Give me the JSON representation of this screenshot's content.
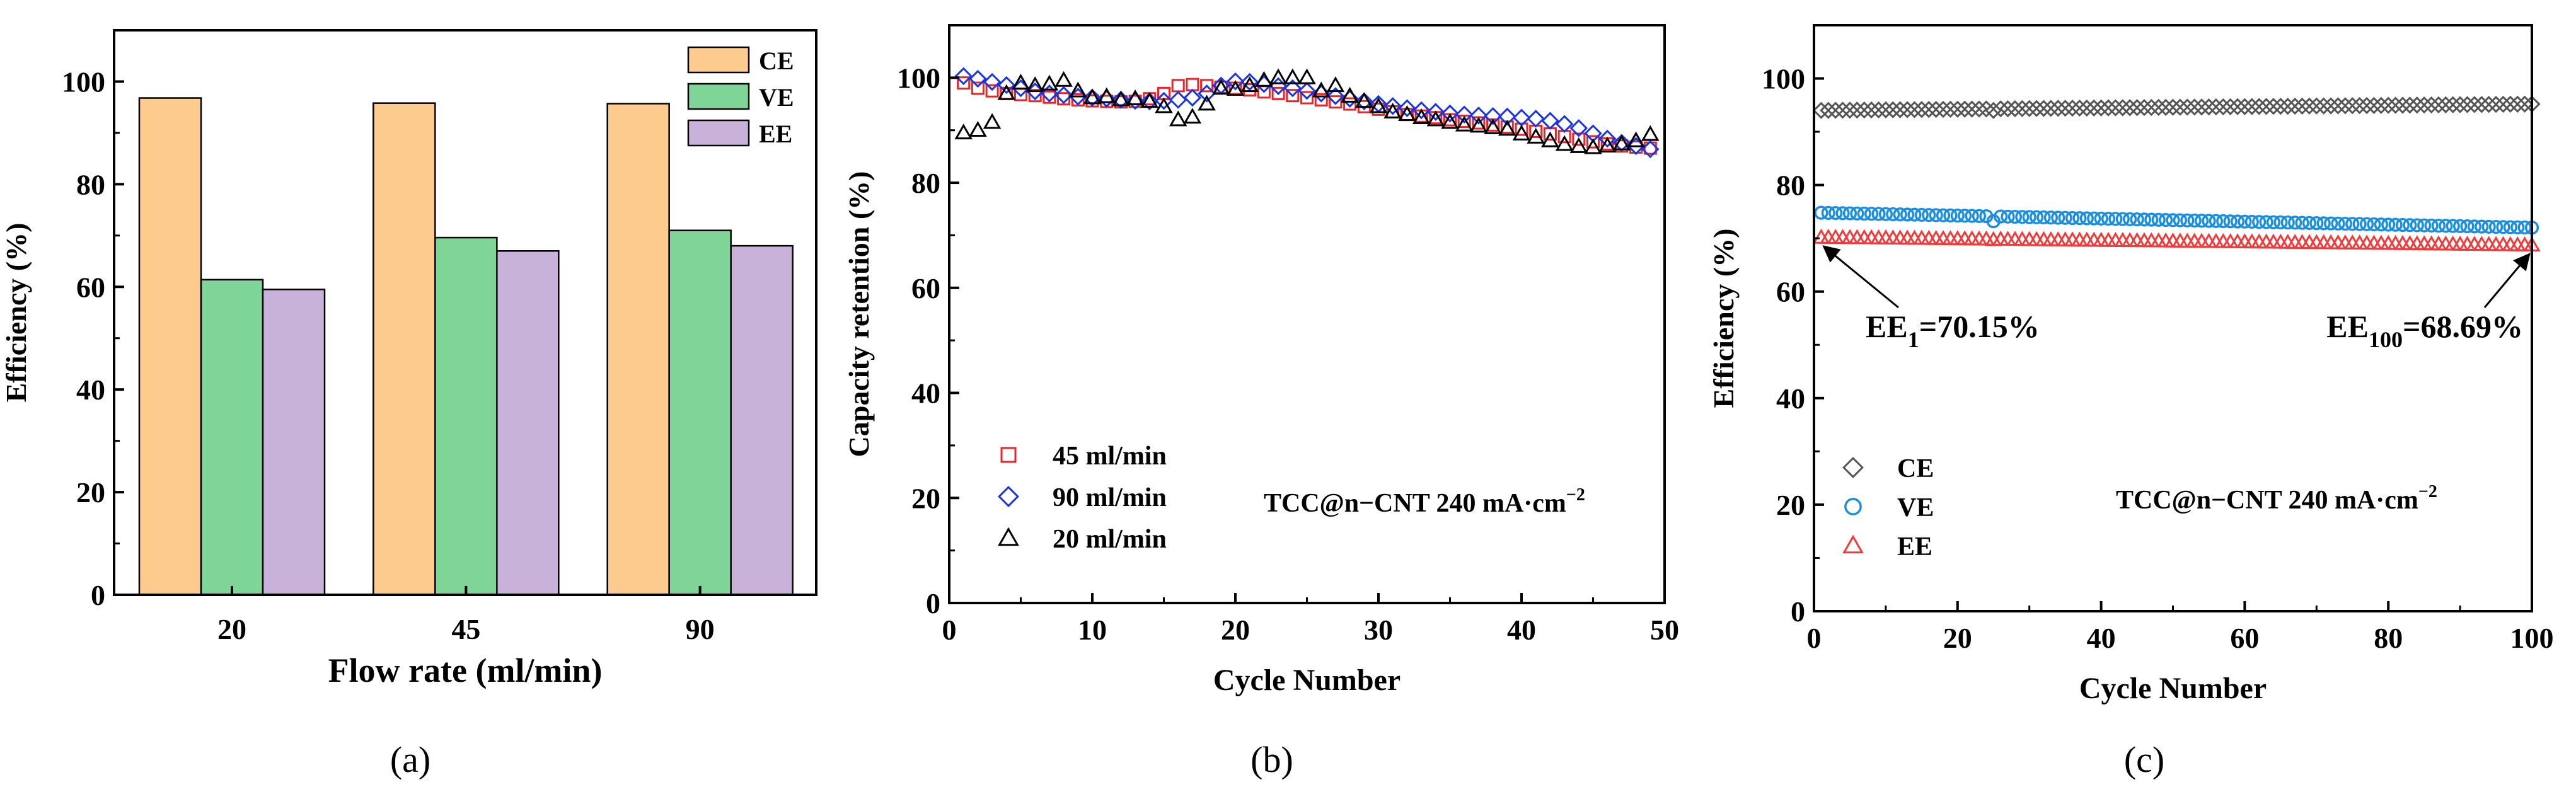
{
  "chart_data": [
    {
      "type": "bar",
      "panel_label": "(a)",
      "xlabel": "Flow rate (ml/min)",
      "ylabel": "Efficiency (%)",
      "ylim": [
        0,
        110
      ],
      "yticks": [
        0,
        20,
        40,
        60,
        80,
        100
      ],
      "categories": [
        "20",
        "45",
        "90"
      ],
      "series": [
        {
          "name": "CE",
          "color": "#FECB8F",
          "values": [
            96.8,
            95.8,
            95.7
          ]
        },
        {
          "name": "VE",
          "color": "#7ED597",
          "values": [
            61.4,
            69.6,
            71.0
          ]
        },
        {
          "name": "EE",
          "color": "#C9B2D9",
          "values": [
            59.5,
            67.0,
            68.0
          ]
        }
      ],
      "legend": "top-right"
    },
    {
      "type": "scatter",
      "panel_label": "(b)",
      "xlabel": "Cycle Number",
      "ylabel": "Capacity retention (%)",
      "xlim": [
        0,
        50
      ],
      "ylim": [
        0,
        110
      ],
      "xticks": [
        0,
        10,
        20,
        30,
        40,
        50
      ],
      "yticks": [
        0,
        20,
        40,
        60,
        80,
        100
      ],
      "annotation": "TCC@n−CNT 240 mA·cm",
      "annotation_sup": "−2",
      "legend": "bottom-left",
      "series": [
        {
          "name": "45 ml/min",
          "marker": "square",
          "color": "#E8262A",
          "x": [
            1,
            2,
            3,
            4,
            5,
            6,
            7,
            8,
            9,
            10,
            11,
            12,
            13,
            14,
            15,
            16,
            17,
            18,
            19,
            20,
            21,
            22,
            23,
            24,
            25,
            26,
            27,
            28,
            29,
            30,
            31,
            32,
            33,
            34,
            35,
            36,
            37,
            38,
            39,
            40,
            41,
            42,
            43,
            44,
            45,
            46,
            47,
            48,
            49
          ],
          "y": [
            99,
            98,
            97.5,
            97,
            96.8,
            96.6,
            96.3,
            96,
            95.8,
            95.6,
            95.5,
            95.4,
            95.5,
            96,
            97,
            98.5,
            98.7,
            98.5,
            98.2,
            98,
            97.7,
            97.3,
            97,
            96.6,
            96.2,
            95.8,
            95.4,
            95,
            94.5,
            94,
            93.5,
            93,
            92.7,
            92.4,
            92,
            91.7,
            91.4,
            91,
            90.6,
            90.2,
            89.8,
            89.3,
            88.8,
            88.3,
            87.8,
            87.4,
            87,
            86.8,
            86.6
          ]
        },
        {
          "name": "90 ml/min",
          "marker": "diamond",
          "color": "#1B35E0",
          "x": [
            1,
            2,
            3,
            4,
            5,
            6,
            7,
            8,
            9,
            10,
            11,
            12,
            13,
            14,
            15,
            16,
            17,
            18,
            19,
            20,
            21,
            22,
            23,
            24,
            25,
            26,
            27,
            28,
            29,
            30,
            31,
            32,
            33,
            34,
            35,
            36,
            37,
            38,
            39,
            40,
            41,
            42,
            43,
            44,
            45,
            46,
            47,
            48,
            49
          ],
          "y": [
            100.3,
            99.8,
            99.2,
            98.6,
            98,
            97.4,
            97,
            96.7,
            96.4,
            96.2,
            96,
            95.8,
            95.6,
            95.5,
            95.6,
            95.8,
            96.2,
            97,
            98.5,
            99.3,
            99.2,
            98.8,
            98.4,
            98,
            97.5,
            97,
            96.5,
            96,
            95.5,
            95,
            94.6,
            94.2,
            93.8,
            93.5,
            93.2,
            93,
            92.8,
            92.7,
            92.6,
            92.4,
            92.2,
            91.8,
            91.2,
            90.4,
            89.4,
            88.4,
            87.6,
            87,
            86.4
          ]
        },
        {
          "name": "20 ml/min",
          "marker": "triangle",
          "color": "#000000",
          "x": [
            1,
            2,
            3,
            4,
            5,
            6,
            7,
            8,
            9,
            10,
            11,
            12,
            13,
            14,
            15,
            16,
            17,
            18,
            19,
            20,
            21,
            22,
            23,
            24,
            25,
            26,
            27,
            28,
            29,
            30,
            31,
            32,
            33,
            34,
            35,
            36,
            37,
            38,
            39,
            40,
            41,
            42,
            43,
            44,
            45,
            46,
            47,
            48,
            49
          ],
          "y": [
            89.5,
            90,
            91.5,
            97,
            99,
            98.5,
            98.8,
            99.5,
            97.5,
            96.2,
            96.4,
            95.8,
            96,
            95.5,
            94.5,
            92,
            92.5,
            95,
            98,
            97.8,
            98.5,
            99.5,
            100,
            100,
            100,
            97.5,
            98.5,
            96.5,
            95.5,
            94.5,
            93.5,
            93,
            92.4,
            92,
            91.5,
            91,
            90.8,
            90.5,
            90.2,
            89.3,
            88.7,
            88,
            87.3,
            86.9,
            86.7,
            87,
            87.4,
            88,
            89.2
          ]
        }
      ]
    },
    {
      "type": "scatter",
      "panel_label": "(c)",
      "xlabel": "Cycle Number",
      "ylabel": "Efficiency (%)",
      "xlim": [
        0,
        100
      ],
      "ylim": [
        0,
        110
      ],
      "xticks": [
        0,
        20,
        40,
        60,
        80,
        100
      ],
      "yticks": [
        0,
        20,
        40,
        60,
        80,
        100
      ],
      "annotation": "TCC@n−CNT  240 mA·cm",
      "annotation_sup": "−2",
      "legend": "bottom-left",
      "series": [
        {
          "name": "CE",
          "marker": "diamond",
          "color": "#555555",
          "start": 94.0,
          "end": 95.2,
          "dips": {
            "25": 94.0
          }
        },
        {
          "name": "VE",
          "marker": "circle",
          "color": "#1A8FE0",
          "start": 74.8,
          "end": 72.0,
          "dips": {
            "25": 73.2
          }
        },
        {
          "name": "EE",
          "marker": "triangle",
          "color": "#F23A3A",
          "start": 70.15,
          "end": 68.69,
          "dips": {
            "25": 69.7
          }
        }
      ],
      "callouts": [
        {
          "base": "EE",
          "sub": "1",
          "rest": "=70.15%",
          "cycle": 1,
          "value": 70.15
        },
        {
          "base": "EE",
          "sub": "100",
          "rest": "=68.69%",
          "cycle": 100,
          "value": 68.69
        }
      ]
    }
  ]
}
